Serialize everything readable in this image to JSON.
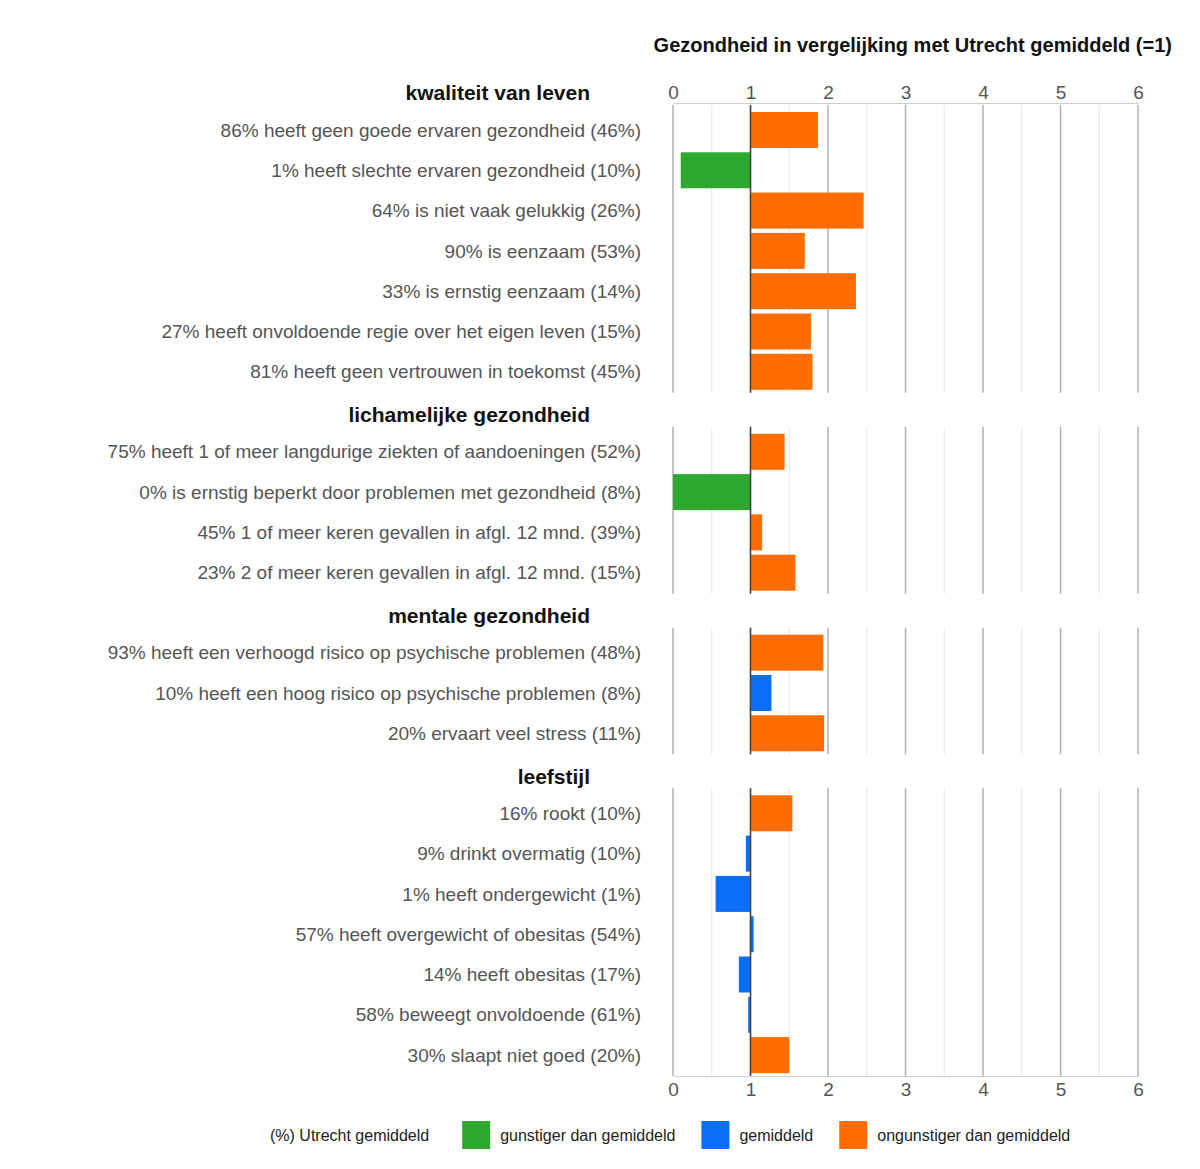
{
  "chart_data": {
    "type": "bar",
    "orientation": "horizontal",
    "title": "Gezondheid in vergelijking met Utrecht gemiddeld (=1)",
    "baseline": 1,
    "xlim": [
      0,
      6
    ],
    "xticks": [
      0,
      1,
      2,
      3,
      4,
      5,
      6
    ],
    "minor_grid": [
      0.5,
      1.5,
      2.5,
      3.5,
      4.5,
      5.5
    ],
    "grid": true,
    "legend": "bottom",
    "legend_note": "(%) Utrecht gemiddeld",
    "legend_entries": [
      {
        "name": "gunstiger dan gemiddeld",
        "color": "#2ea82e"
      },
      {
        "name": "gemiddeld",
        "color": "#0b6ef6"
      },
      {
        "name": "ongunstiger dan gemiddeld",
        "color": "#ff6d00"
      }
    ],
    "groups": [
      {
        "name": "kwaliteit van leven",
        "categories": [
          "86% heeft geen goede ervaren gezondheid (46%)",
          "1% heeft slechte ervaren gezondheid (10%)",
          "64% is niet vaak gelukkig (26%)",
          "90% is eenzaam (53%)",
          "33% is ernstig eenzaam (14%)",
          "27% heeft onvoldoende regie over het eigen leven (15%)",
          "81% heeft geen vertrouwen in toekomst (45%)"
        ],
        "values": [
          1.87,
          0.1,
          2.46,
          1.7,
          2.36,
          1.78,
          1.8
        ],
        "colors": [
          "#ff6d00",
          "#2ea82e",
          "#ff6d00",
          "#ff6d00",
          "#ff6d00",
          "#ff6d00",
          "#ff6d00"
        ]
      },
      {
        "name": "lichamelijke gezondheid",
        "categories": [
          "75% heeft 1 of meer langdurige ziekten of aandoeningen (52%)",
          "0% is ernstig beperkt door problemen met gezondheid (8%)",
          "45% 1 of meer keren gevallen in afgl. 12 mnd. (39%)",
          "23% 2 of meer keren gevallen in afgl. 12 mnd. (15%)"
        ],
        "values": [
          1.44,
          0,
          1.15,
          1.58
        ],
        "colors": [
          "#ff6d00",
          "#2ea82e",
          "#ff6d00",
          "#ff6d00"
        ]
      },
      {
        "name": "mentale gezondheid",
        "categories": [
          "93% heeft een verhoogd risico op psychische problemen (48%)",
          "10% heeft een hoog risico op psychische problemen (8%)",
          "20% ervaart veel stress (11%)"
        ],
        "values": [
          1.94,
          1.27,
          1.95
        ],
        "colors": [
          "#ff6d00",
          "#0b6ef6",
          "#ff6d00"
        ]
      },
      {
        "name": "leefstijl",
        "categories": [
          "16% rookt (10%)",
          "9% drinkt overmatig (10%)",
          "1% heeft ondergewicht (1%)",
          "57% heeft overgewicht of obesitas (54%)",
          "14% heeft obesitas (17%)",
          "58% beweegt onvoldoende (61%)",
          "30% slaapt niet goed (20%)"
        ],
        "values": [
          1.54,
          0.94,
          0.55,
          1.04,
          0.85,
          0.97,
          1.5
        ],
        "colors": [
          "#ff6d00",
          "#0b6ef6",
          "#0b6ef6",
          "#0b6ef6",
          "#0b6ef6",
          "#0b6ef6",
          "#ff6d00"
        ]
      }
    ]
  }
}
